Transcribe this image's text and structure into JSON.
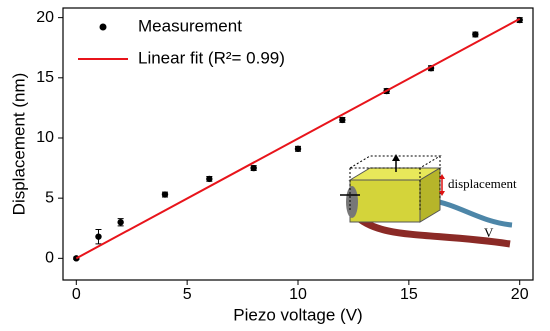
{
  "chart_data": {
    "type": "scatter",
    "x_label": "Piezo voltage (V)",
    "y_label": "Displacement (nm)",
    "xlim": [
      -0.6,
      20.6
    ],
    "ylim": [
      -1.8,
      20.8
    ],
    "xticks": [
      0,
      5,
      10,
      15,
      20
    ],
    "yticks": [
      0,
      5,
      10,
      15,
      20
    ],
    "legend": "top-left",
    "series": [
      {
        "name": "Measurement",
        "color": "#000000",
        "marker": "point",
        "x": [
          0,
          1,
          2,
          4,
          6,
          8,
          10,
          12,
          14,
          16,
          18,
          20
        ],
        "values": [
          0,
          1.8,
          3.0,
          5.3,
          6.6,
          7.5,
          9.1,
          11.5,
          13.9,
          15.8,
          18.6,
          19.8
        ],
        "errors": [
          0.1,
          0.6,
          0.3,
          0.2,
          0.2,
          0.2,
          0.2,
          0.2,
          0.2,
          0.2,
          0.2,
          0.2
        ]
      },
      {
        "name": "Linear fit (R²= 0.99)",
        "color": "#e8141b",
        "marker": "line",
        "x": [
          0,
          20
        ],
        "values": [
          0,
          19.9
        ]
      }
    ],
    "annotations": [
      "displacement",
      "V"
    ]
  }
}
